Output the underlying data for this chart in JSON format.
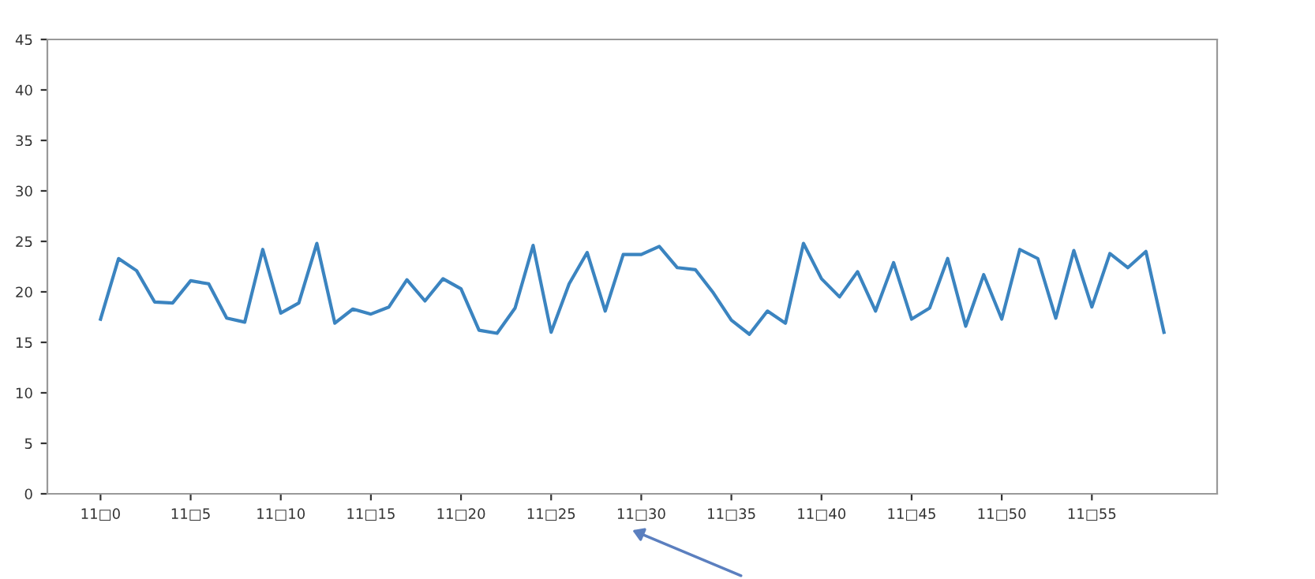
{
  "chart_data": {
    "type": "line",
    "categories": [
      "11□0",
      null,
      null,
      null,
      null,
      "11□5",
      null,
      null,
      null,
      null,
      "11□10",
      null,
      null,
      null,
      null,
      "11□15",
      null,
      null,
      null,
      null,
      "11□20",
      null,
      null,
      null,
      null,
      "11□25",
      null,
      null,
      null,
      null,
      "11□30",
      null,
      null,
      null,
      null,
      "11□35",
      null,
      null,
      null,
      null,
      "11□40",
      null,
      null,
      null,
      null,
      "11□45",
      null,
      null,
      null,
      null,
      "11□50",
      null,
      null,
      null,
      null,
      "11□55",
      null,
      null,
      null,
      null
    ],
    "series": [
      {
        "color": "#3b84c0",
        "values": [
          17.3,
          23.3,
          22.1,
          19.0,
          18.9,
          21.1,
          20.8,
          17.4,
          17.0,
          24.2,
          17.9,
          18.9,
          24.8,
          16.9,
          18.3,
          17.8,
          18.5,
          21.2,
          19.1,
          21.3,
          20.3,
          16.2,
          15.9,
          18.4,
          24.6,
          16.0,
          20.8,
          23.9,
          18.1,
          23.7,
          23.7,
          24.5,
          22.4,
          22.2,
          19.9,
          17.2,
          15.8,
          18.1,
          16.9,
          24.8,
          21.3,
          19.5,
          22.0,
          18.1,
          22.9,
          17.3,
          18.4,
          23.3,
          16.6,
          21.7,
          17.3,
          24.2,
          23.3,
          17.4,
          24.1,
          18.5,
          23.8,
          22.4,
          24.0,
          16.0
        ]
      }
    ],
    "ylim": [
      0,
      45
    ],
    "yticks": [
      0,
      5,
      10,
      15,
      20,
      25,
      30,
      35,
      40,
      45
    ],
    "marker": "none",
    "line_style": "solid"
  }
}
